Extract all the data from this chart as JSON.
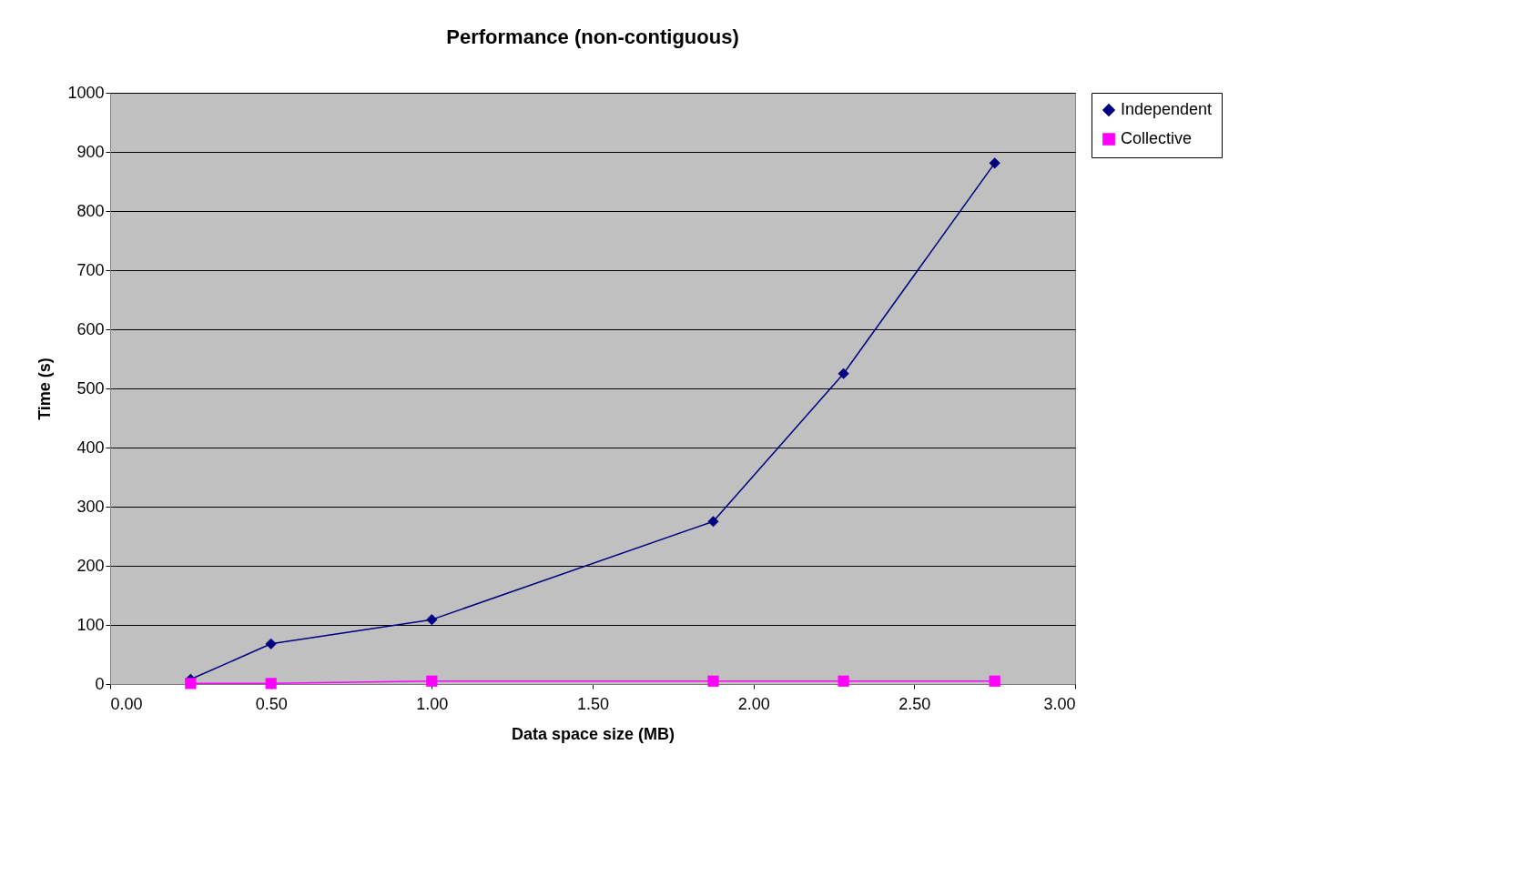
{
  "chart_data": {
    "type": "line",
    "title": "Performance (non-contiguous)",
    "xlabel": "Data space size (MB)",
    "ylabel": "Time (s)",
    "x": [
      0.25,
      0.5,
      1.0,
      1.875,
      2.28,
      2.75
    ],
    "series": [
      {
        "name": "Independent",
        "color": "#000080",
        "marker": "diamond",
        "values": [
          8,
          68,
          109,
          275,
          525,
          881
        ]
      },
      {
        "name": "Collective",
        "color": "#ff00ff",
        "marker": "square",
        "values": [
          1,
          1,
          5,
          5,
          5,
          5
        ]
      }
    ],
    "xlim": [
      0,
      3
    ],
    "xticks": [
      {
        "value": 0,
        "label": "0.00"
      },
      {
        "value": 0.5,
        "label": "0.50"
      },
      {
        "value": 1,
        "label": "1.00"
      },
      {
        "value": 1.5,
        "label": "1.50"
      },
      {
        "value": 2,
        "label": "2.00"
      },
      {
        "value": 2.5,
        "label": "2.50"
      },
      {
        "value": 3,
        "label": "3.00"
      }
    ],
    "ylim": [
      0,
      1000
    ],
    "yticks": [
      0,
      100,
      200,
      300,
      400,
      500,
      600,
      700,
      800,
      900,
      1000
    ],
    "grid": "y",
    "legend": "right",
    "line_style": "solid"
  }
}
